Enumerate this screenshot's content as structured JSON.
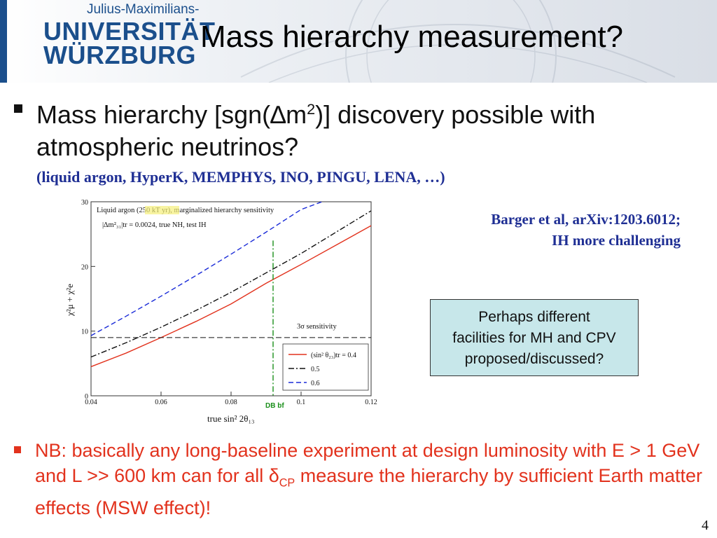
{
  "header": {
    "logo_top": "Julius-Maximilians-",
    "logo_line1": "UNIVERSITÄT",
    "logo_line2": "WÜRZBURG",
    "title": "Mass hierarchy measurement?"
  },
  "bullet1": {
    "part1": "Mass hierarchy [sgn(",
    "delta": "∆",
    "m": "m",
    "sup": "2",
    "part2": ")] discovery possible with atmospheric neutrinos?",
    "note": "(liquid argon, HyperK, MEMPHYS, INO, PINGU, LENA, …)"
  },
  "reference": {
    "line1": "Barger et al, arXiv:1203.6012;",
    "line2": "IH more challenging"
  },
  "callout": {
    "line1": "Perhaps different",
    "line2": "facilities for MH and CPV",
    "line3": "proposed/discussed?"
  },
  "bullet2": {
    "part1": "NB: basically any long-baseline experiment at design luminosity with E > 1 GeV and L >> 600 km can for all ",
    "delta": "δ",
    "sub": "CP",
    "part2": " measure the hierarchy by sufficient Earth matter effects (MSW effect)!"
  },
  "slide_number": "4",
  "colors": {
    "red": "#e2321d",
    "blue": "#1f2f94",
    "logo_blue": "#1b4f8c",
    "box_bg": "#c7e7ea"
  },
  "chart_data": {
    "type": "line",
    "xlabel": "true sin² 2θ₁₃",
    "ylabel": "χ²μ + χ²e",
    "xlim": [
      0.04,
      0.12
    ],
    "ylim": [
      0,
      30
    ],
    "x_ticks": [
      "0.04",
      "0.06",
      "0.08",
      "0.1",
      "0.12"
    ],
    "y_ticks": [
      "0",
      "10",
      "20",
      "30"
    ],
    "annotation_line1_a": "Liquid argon (",
    "annotation_line1_hl": "250 kT yr",
    "annotation_line1_b": "), marginalized hierarchy sensitivity",
    "annotation_line2": "|∆m²₃₁|tr = 0.0024, true NH, test IH",
    "threshold_label": "3σ sensitivity",
    "threshold": 9,
    "vline_label": "DB bf",
    "vline_x": 0.092,
    "legend_position": "bottom-right",
    "series": [
      {
        "name": "(sin² θ₂₃)tr = 0.4",
        "color": "#e2321d",
        "dash": "solid",
        "x": [
          0.04,
          0.05,
          0.06,
          0.07,
          0.08,
          0.09,
          0.1,
          0.11,
          0.12
        ],
        "y": [
          4.5,
          6.6,
          9.0,
          11.5,
          14.2,
          17.4,
          20.3,
          23.3,
          26.3
        ]
      },
      {
        "name": "0.5",
        "color": "#111111",
        "dash": "dashdot",
        "x": [
          0.04,
          0.05,
          0.06,
          0.07,
          0.08,
          0.09,
          0.1,
          0.11,
          0.12
        ],
        "y": [
          6.0,
          8.2,
          10.6,
          13.2,
          16.0,
          19.0,
          22.0,
          25.3,
          28.6
        ]
      },
      {
        "name": "0.6",
        "color": "#1a2bd8",
        "dash": "dash",
        "x": [
          0.04,
          0.05,
          0.06,
          0.07,
          0.08,
          0.09,
          0.1,
          0.106
        ],
        "y": [
          9.3,
          12.3,
          15.4,
          18.6,
          21.9,
          25.3,
          28.8,
          31.0
        ]
      }
    ]
  }
}
